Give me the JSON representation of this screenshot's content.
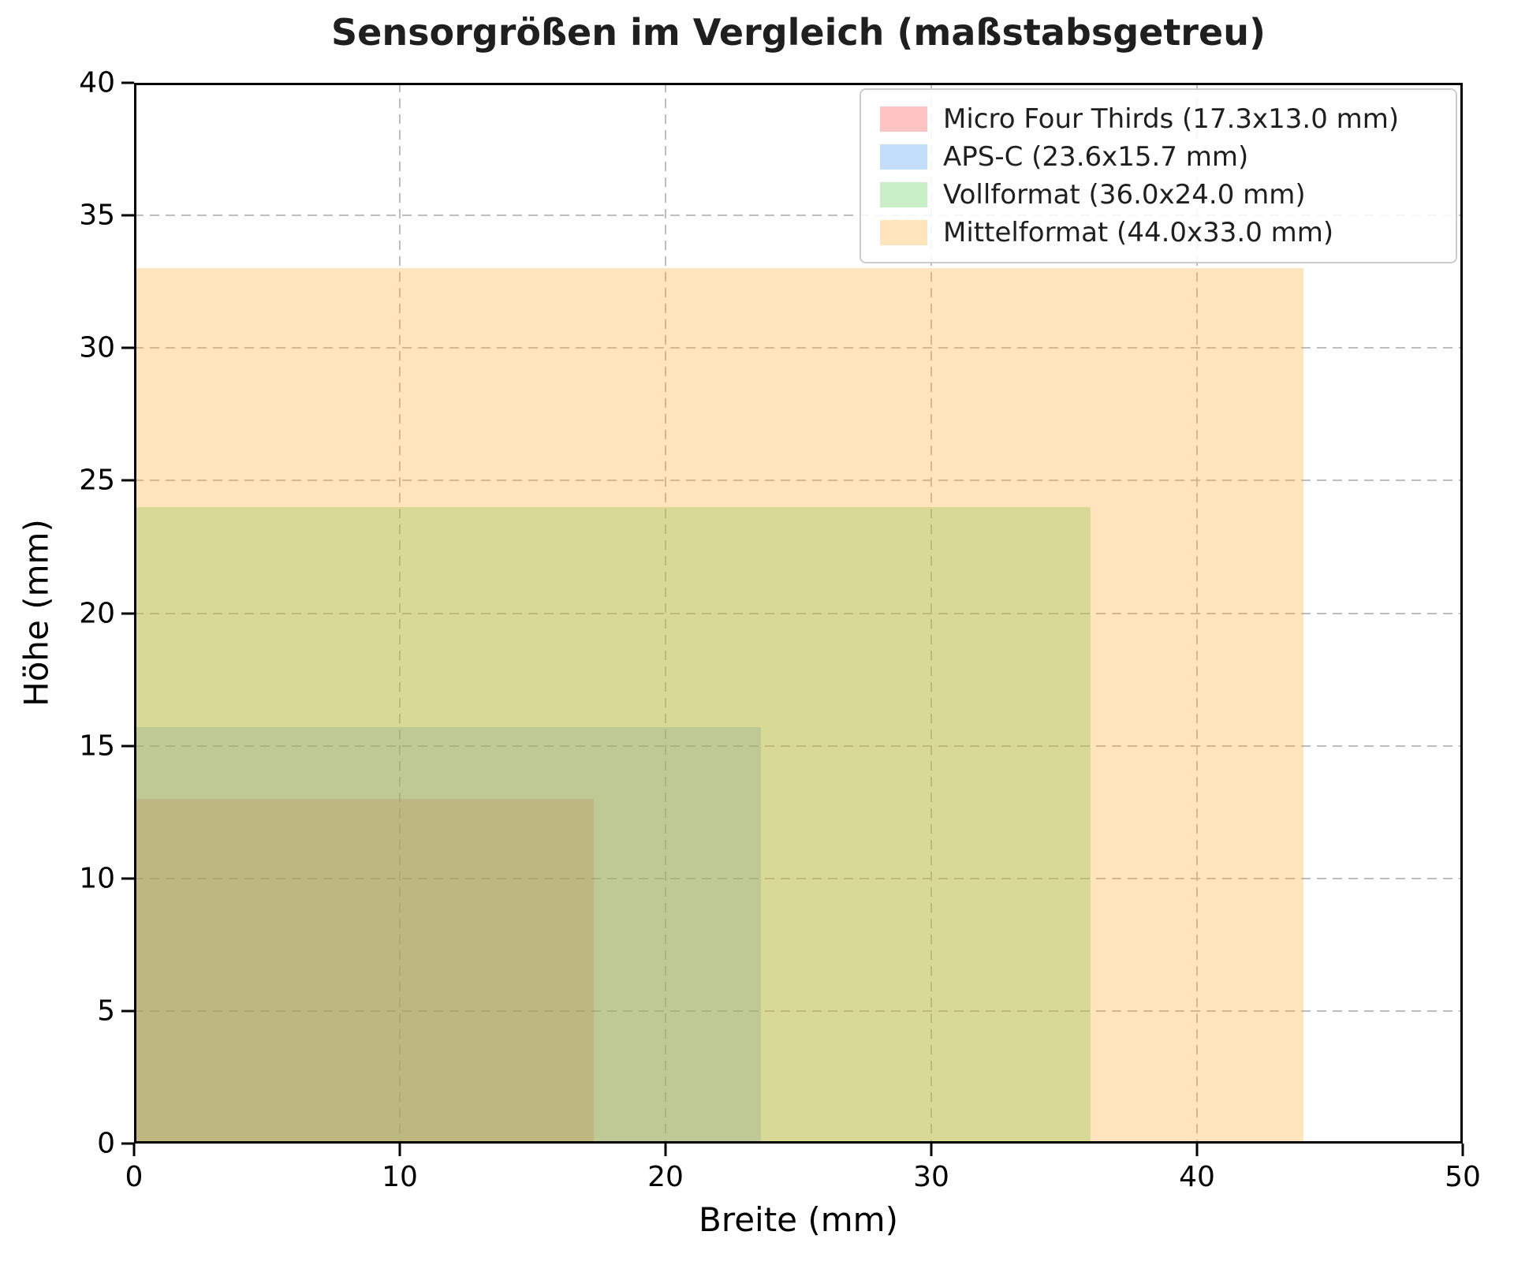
{
  "chart_data": {
    "type": "area",
    "title": "Sensorgrößen im Vergleich (maßstabsgetreu)",
    "xlabel": "Breite (mm)",
    "ylabel": "Höhe (mm)",
    "xlim": [
      0,
      50
    ],
    "ylim": [
      0,
      40
    ],
    "xticks": [
      0,
      10,
      20,
      30,
      40,
      50
    ],
    "yticks": [
      0,
      5,
      10,
      15,
      20,
      25,
      30,
      35,
      40
    ],
    "grid": true,
    "grid_style": "dashed",
    "legend_position": "upper right",
    "series": [
      {
        "name": "Micro Four Thirds",
        "label": "Micro Four Thirds (17.3x13.0 mm)",
        "width_mm": 17.3,
        "height_mm": 13.0,
        "color": "#ff4444",
        "alpha": 0.32
      },
      {
        "name": "APS-C",
        "label": "APS-C (23.6x15.7 mm)",
        "width_mm": 23.6,
        "height_mm": 15.7,
        "color": "#4499ee",
        "alpha": 0.32
      },
      {
        "name": "Vollformat",
        "label": "Vollformat (36.0x24.0 mm)",
        "width_mm": 36.0,
        "height_mm": 24.0,
        "color": "#55cc55",
        "alpha": 0.32
      },
      {
        "name": "Mittelformat",
        "label": "Mittelformat (44.0x33.0 mm)",
        "width_mm": 44.0,
        "height_mm": 33.0,
        "color": "#ffaa33",
        "alpha": 0.32
      }
    ]
  }
}
